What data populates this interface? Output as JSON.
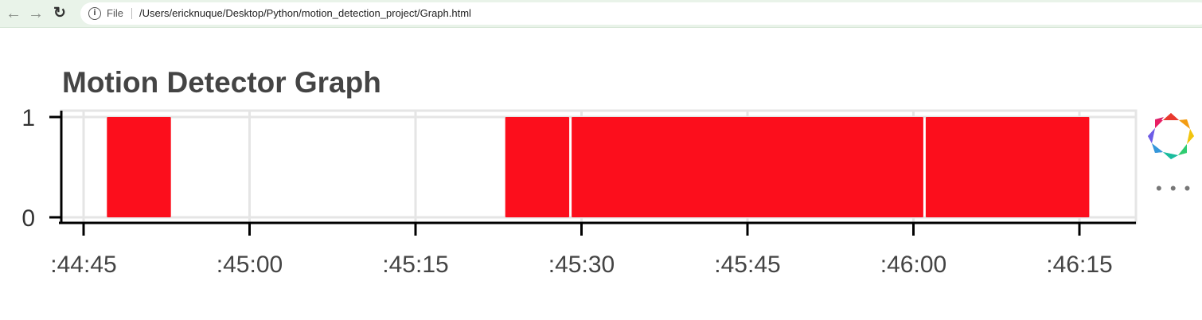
{
  "browser": {
    "scheme_label": "File",
    "url": "/Users/ericknuque/Desktop/Python/motion_detection_project/Graph.html",
    "icons": {
      "back": "back-arrow-icon",
      "forward": "forward-arrow-icon",
      "reload": "reload-icon",
      "info": "info-icon"
    }
  },
  "page": {
    "title": "Motion Detector Graph"
  },
  "toolbar": {
    "logo": "bokeh-logo-icon",
    "more": "more-options-icon",
    "more_glyph": "• • •"
  },
  "chart_data": {
    "type": "bar",
    "title": "Motion Detector Graph",
    "xlabel": "",
    "ylabel": "",
    "x_axis": "time",
    "xlim": [
      "44:44",
      "46:19"
    ],
    "ylim": [
      0,
      1
    ],
    "yticks": [
      0,
      1
    ],
    "ytick_labels": [
      "0",
      "1"
    ],
    "xticks": [
      "44:45",
      "45:00",
      "45:15",
      "45:30",
      "45:45",
      "46:00",
      "46:15"
    ],
    "xtick_labels": [
      ":44:45",
      ":45:00",
      ":45:15",
      ":45:30",
      ":45:45",
      ":46:00",
      ":46:15"
    ],
    "grid": true,
    "color": "#fc0e1c",
    "intervals": [
      {
        "start": "44:47",
        "end": "44:53",
        "value": 1
      },
      {
        "start": "45:23",
        "end": "45:29",
        "value": 1
      },
      {
        "start": "45:29",
        "end": "46:01",
        "value": 1
      },
      {
        "start": "46:01",
        "end": "46:16",
        "value": 1
      }
    ]
  }
}
